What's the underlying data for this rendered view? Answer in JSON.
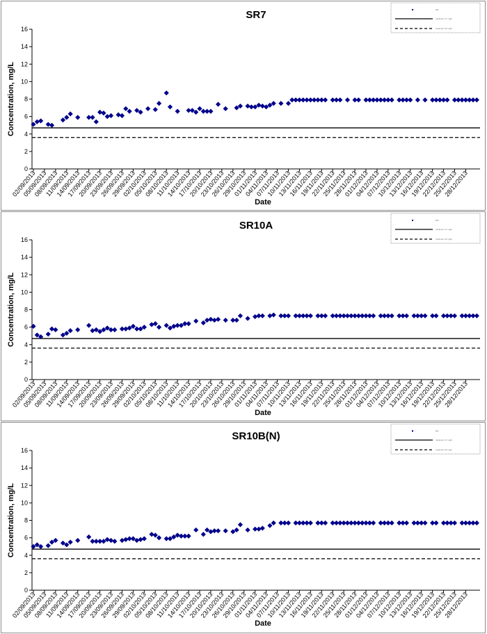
{
  "charts": [
    {
      "type": "scatter",
      "title": "SR7",
      "xlabel": "Date",
      "ylabel": "Concentration, mg/L",
      "ylim": [
        0,
        16
      ],
      "yticks": [
        0,
        2,
        4,
        6,
        8,
        10,
        12,
        14,
        16
      ],
      "x_tick_labels": [
        "02/09/2013",
        "05/09/2013",
        "08/09/2013",
        "11/09/2013",
        "14/09/2013",
        "17/09/2013",
        "20/09/2013",
        "23/09/2013",
        "26/09/2013",
        "29/09/2013",
        "02/10/2013",
        "05/10/2013",
        "08/10/2013",
        "11/10/2013",
        "14/10/2013",
        "17/10/2013",
        "20/10/2013",
        "23/10/2013",
        "26/10/2013",
        "29/10/2013",
        "01/11/2013",
        "04/11/2013",
        "07/11/2013",
        "10/11/2013",
        "13/11/2013",
        "16/11/2013",
        "19/11/2013",
        "22/11/2013",
        "25/11/2013",
        "28/11/2013",
        "01/12/2013",
        "04/12/2013",
        "07/12/2013",
        "10/12/2013",
        "13/12/2013",
        "16/12/2013",
        "19/12/2013",
        "22/12/2013",
        "25/12/2013",
        "28/12/2013"
      ],
      "legend": {
        "position": "top-right",
        "entries": [
          "DO",
          "minimum 4.7 mg/l",
          "minimum 3.6 mg/l"
        ]
      },
      "series": [
        {
          "name": "DO",
          "marker": "diamond",
          "color": "#00008b",
          "x": [
            "02/09/2013",
            "03/09/2013",
            "04/09/2013",
            "06/09/2013",
            "07/09/2013",
            "10/09/2013",
            "11/09/2013",
            "12/09/2013",
            "14/09/2013",
            "17/09/2013",
            "18/09/2013",
            "19/09/2013",
            "20/09/2013",
            "21/09/2013",
            "22/09/2013",
            "23/09/2013",
            "25/09/2013",
            "26/09/2013",
            "27/09/2013",
            "28/09/2013",
            "30/09/2013",
            "01/10/2013",
            "03/10/2013",
            "05/10/2013",
            "06/10/2013",
            "08/10/2013",
            "09/10/2013",
            "11/10/2013",
            "14/10/2013",
            "15/10/2013",
            "16/10/2013",
            "17/10/2013",
            "18/10/2013",
            "19/10/2013",
            "20/10/2013",
            "22/10/2013",
            "24/10/2013",
            "27/10/2013",
            "28/10/2013",
            "30/10/2013",
            "31/10/2013",
            "01/11/2013",
            "02/11/2013",
            "03/11/2013",
            "04/11/2013",
            "05/11/2013",
            "06/11/2013",
            "08/11/2013",
            "10/11/2013",
            "11/11/2013",
            "12/11/2013",
            "13/11/2013",
            "14/11/2013",
            "15/11/2013",
            "16/11/2013",
            "17/11/2013",
            "18/11/2013",
            "19/11/2013",
            "20/11/2013",
            "22/11/2013",
            "23/11/2013",
            "24/11/2013",
            "26/11/2013",
            "28/11/2013",
            "29/11/2013",
            "01/12/2013",
            "02/12/2013",
            "03/12/2013",
            "04/12/2013",
            "05/12/2013",
            "06/12/2013",
            "07/12/2013",
            "08/12/2013",
            "10/12/2013",
            "11/12/2013",
            "12/12/2013",
            "13/12/2013",
            "15/12/2013",
            "17/12/2013",
            "19/12/2013",
            "20/12/2013",
            "21/12/2013",
            "22/12/2013",
            "23/12/2013",
            "25/12/2013",
            "26/12/2013",
            "27/12/2013",
            "28/12/2013",
            "29/12/2013",
            "30/12/2013",
            "31/12/2013"
          ],
          "y": [
            5.1,
            5.4,
            5.5,
            5.1,
            5.0,
            5.6,
            5.9,
            6.3,
            5.9,
            5.9,
            5.9,
            5.4,
            6.5,
            6.4,
            6.0,
            6.1,
            6.2,
            6.1,
            6.9,
            6.6,
            6.7,
            6.5,
            6.9,
            6.8,
            7.5,
            8.7,
            7.1,
            6.6,
            6.7,
            6.7,
            6.5,
            6.9,
            6.6,
            6.6,
            6.6,
            7.4,
            6.9,
            7.0,
            7.2,
            7.2,
            7.1,
            7.1,
            7.3,
            7.2,
            7.1,
            7.3,
            7.5,
            7.5,
            7.5,
            7.9,
            7.9,
            7.9,
            7.9,
            7.9,
            7.9,
            7.9,
            7.9,
            7.9,
            7.9,
            7.9,
            7.9,
            7.9,
            7.9,
            7.9,
            7.9,
            7.9,
            7.9,
            7.9,
            7.9,
            7.9,
            7.9,
            7.9,
            7.9,
            7.9,
            7.9,
            7.9,
            7.9,
            7.9,
            7.9,
            7.9,
            7.9,
            7.9,
            7.9,
            7.9,
            7.9,
            7.9,
            7.9,
            7.9,
            7.9,
            7.9,
            7.9
          ]
        },
        {
          "name": "minimum 4.7 mg/l",
          "type": "line",
          "style": "solid",
          "color": "#000000",
          "y": 4.7
        },
        {
          "name": "minimum 3.6 mg/l",
          "type": "line",
          "style": "dashed",
          "color": "#000000",
          "y": 3.6
        }
      ]
    },
    {
      "type": "scatter",
      "title": "SR10A",
      "xlabel": "Date",
      "ylabel": "Concentration, mg/L",
      "ylim": [
        0,
        16
      ],
      "yticks": [
        0,
        2,
        4,
        6,
        8,
        10,
        12,
        14,
        16
      ],
      "x_tick_labels": [
        "02/09/2013",
        "05/09/2013",
        "08/09/2013",
        "11/09/2013",
        "14/09/2013",
        "17/09/2013",
        "20/09/2013",
        "23/09/2013",
        "26/09/2013",
        "29/09/2013",
        "02/10/2013",
        "05/10/2013",
        "08/10/2013",
        "11/10/2013",
        "14/10/2013",
        "17/10/2013",
        "20/10/2013",
        "23/10/2013",
        "26/10/2013",
        "29/10/2013",
        "01/11/2013",
        "04/11/2013",
        "07/11/2013",
        "10/11/2013",
        "13/11/2013",
        "16/11/2013",
        "19/11/2013",
        "22/11/2013",
        "25/11/2013",
        "28/11/2013",
        "01/12/2013",
        "04/12/2013",
        "07/12/2013",
        "10/12/2013",
        "13/12/2013",
        "16/12/2013",
        "19/12/2013",
        "22/12/2013",
        "25/12/2013",
        "28/12/2013"
      ],
      "legend": {
        "position": "top-right",
        "entries": [
          "DO",
          "minimum 4.7 mg/l",
          "minimum 3.6 mg/l"
        ]
      },
      "series": [
        {
          "name": "DO",
          "marker": "diamond",
          "color": "#00008b",
          "x": [
            "02/09/2013",
            "03/09/2013",
            "04/09/2013",
            "06/09/2013",
            "07/09/2013",
            "08/09/2013",
            "10/09/2013",
            "11/09/2013",
            "12/09/2013",
            "14/09/2013",
            "17/09/2013",
            "18/09/2013",
            "19/09/2013",
            "20/09/2013",
            "21/09/2013",
            "22/09/2013",
            "23/09/2013",
            "24/09/2013",
            "26/09/2013",
            "27/09/2013",
            "28/09/2013",
            "29/09/2013",
            "30/09/2013",
            "01/10/2013",
            "02/10/2013",
            "04/10/2013",
            "05/10/2013",
            "06/10/2013",
            "08/10/2013",
            "09/10/2013",
            "10/10/2013",
            "11/10/2013",
            "12/10/2013",
            "13/10/2013",
            "14/10/2013",
            "16/10/2013",
            "18/10/2013",
            "19/10/2013",
            "20/10/2013",
            "21/10/2013",
            "22/10/2013",
            "24/10/2013",
            "26/10/2013",
            "27/10/2013",
            "28/10/2013",
            "30/10/2013",
            "01/11/2013",
            "02/11/2013",
            "03/11/2013",
            "05/11/2013",
            "06/11/2013",
            "08/11/2013",
            "09/11/2013",
            "10/11/2013",
            "12/11/2013",
            "13/11/2013",
            "14/11/2013",
            "15/11/2013",
            "16/11/2013",
            "18/11/2013",
            "19/11/2013",
            "20/11/2013",
            "22/11/2013",
            "23/11/2013",
            "24/11/2013",
            "25/11/2013",
            "26/11/2013",
            "27/11/2013",
            "28/11/2013",
            "29/11/2013",
            "30/11/2013",
            "01/12/2013",
            "02/12/2013",
            "03/12/2013",
            "05/12/2013",
            "06/12/2013",
            "07/12/2013",
            "08/12/2013",
            "10/12/2013",
            "11/12/2013",
            "12/12/2013",
            "14/12/2013",
            "15/12/2013",
            "16/12/2013",
            "17/12/2013",
            "19/12/2013",
            "20/12/2013",
            "22/12/2013",
            "23/12/2013",
            "24/12/2013",
            "25/12/2013",
            "27/12/2013",
            "28/12/2013",
            "29/12/2013",
            "30/12/2013",
            "31/12/2013"
          ],
          "y": [
            6.1,
            5.1,
            4.9,
            5.2,
            5.8,
            5.7,
            5.1,
            5.3,
            5.6,
            5.7,
            6.2,
            5.6,
            5.7,
            5.5,
            5.7,
            5.9,
            5.7,
            5.7,
            5.8,
            5.8,
            5.9,
            6.1,
            5.8,
            5.8,
            6.0,
            6.3,
            6.4,
            6.0,
            6.2,
            5.9,
            6.1,
            6.2,
            6.2,
            6.4,
            6.4,
            6.7,
            6.5,
            6.8,
            6.9,
            6.8,
            6.9,
            6.8,
            6.8,
            6.8,
            7.3,
            7.0,
            7.2,
            7.3,
            7.3,
            7.3,
            7.4,
            7.3,
            7.3,
            7.3,
            7.3,
            7.3,
            7.3,
            7.3,
            7.3,
            7.3,
            7.3,
            7.3,
            7.3,
            7.3,
            7.3,
            7.3,
            7.3,
            7.3,
            7.3,
            7.3,
            7.3,
            7.3,
            7.3,
            7.3,
            7.3,
            7.3,
            7.3,
            7.3,
            7.3,
            7.3,
            7.3,
            7.3,
            7.3,
            7.3,
            7.3,
            7.3,
            7.3,
            7.3,
            7.3,
            7.3,
            7.3,
            7.3,
            7.3,
            7.3,
            7.3,
            7.3
          ]
        },
        {
          "name": "minimum 4.7 mg/l",
          "type": "line",
          "style": "solid",
          "color": "#000000",
          "y": 4.7
        },
        {
          "name": "minimum 3.6 mg/l",
          "type": "line",
          "style": "dashed",
          "color": "#000000",
          "y": 3.6
        }
      ]
    },
    {
      "type": "scatter",
      "title": "SR10B(N)",
      "xlabel": "Date",
      "ylabel": "Concentration, mg/L",
      "ylim": [
        0,
        16
      ],
      "yticks": [
        0,
        2,
        4,
        6,
        8,
        10,
        12,
        14,
        16
      ],
      "x_tick_labels": [
        "02/09/2013",
        "05/09/2013",
        "08/09/2013",
        "11/09/2013",
        "14/09/2013",
        "17/09/2013",
        "20/09/2013",
        "23/09/2013",
        "26/09/2013",
        "29/09/2013",
        "02/10/2013",
        "05/10/2013",
        "08/10/2013",
        "11/10/2013",
        "14/10/2013",
        "17/10/2013",
        "20/10/2013",
        "23/10/2013",
        "26/10/2013",
        "29/10/2013",
        "01/11/2013",
        "04/11/2013",
        "07/11/2013",
        "10/11/2013",
        "13/11/2013",
        "16/11/2013",
        "19/11/2013",
        "22/11/2013",
        "25/11/2013",
        "28/11/2013",
        "01/12/2013",
        "04/12/2013",
        "07/12/2013",
        "10/12/2013",
        "13/12/2013",
        "16/12/2013",
        "19/12/2013",
        "22/12/2013",
        "25/12/2013",
        "28/12/2013"
      ],
      "legend": {
        "position": "top-right",
        "entries": [
          "DO",
          "minimum 4.7 mg/l",
          "minimum 3.6 mg/l"
        ]
      },
      "series": [
        {
          "name": "DO",
          "marker": "diamond",
          "color": "#00008b",
          "x": [
            "02/09/2013",
            "03/09/2013",
            "04/09/2013",
            "06/09/2013",
            "07/09/2013",
            "08/09/2013",
            "10/09/2013",
            "11/09/2013",
            "12/09/2013",
            "14/09/2013",
            "17/09/2013",
            "18/09/2013",
            "19/09/2013",
            "20/09/2013",
            "21/09/2013",
            "22/09/2013",
            "23/09/2013",
            "24/09/2013",
            "26/09/2013",
            "27/09/2013",
            "28/09/2013",
            "29/09/2013",
            "30/09/2013",
            "01/10/2013",
            "02/10/2013",
            "04/10/2013",
            "05/10/2013",
            "06/10/2013",
            "08/10/2013",
            "09/10/2013",
            "10/10/2013",
            "11/10/2013",
            "12/10/2013",
            "13/10/2013",
            "14/10/2013",
            "16/10/2013",
            "18/10/2013",
            "19/10/2013",
            "20/10/2013",
            "21/10/2013",
            "22/10/2013",
            "24/10/2013",
            "26/10/2013",
            "27/10/2013",
            "28/10/2013",
            "30/10/2013",
            "01/11/2013",
            "02/11/2013",
            "03/11/2013",
            "05/11/2013",
            "06/11/2013",
            "08/11/2013",
            "09/11/2013",
            "10/11/2013",
            "12/11/2013",
            "13/11/2013",
            "14/11/2013",
            "15/11/2013",
            "16/11/2013",
            "18/11/2013",
            "19/11/2013",
            "20/11/2013",
            "22/11/2013",
            "23/11/2013",
            "24/11/2013",
            "25/11/2013",
            "26/11/2013",
            "27/11/2013",
            "28/11/2013",
            "29/11/2013",
            "30/11/2013",
            "01/12/2013",
            "02/12/2013",
            "03/12/2013",
            "05/12/2013",
            "06/12/2013",
            "07/12/2013",
            "08/12/2013",
            "10/12/2013",
            "11/12/2013",
            "12/12/2013",
            "14/12/2013",
            "15/12/2013",
            "16/12/2013",
            "17/12/2013",
            "19/12/2013",
            "20/12/2013",
            "22/12/2013",
            "23/12/2013",
            "24/12/2013",
            "25/12/2013",
            "27/12/2013",
            "28/12/2013",
            "29/12/2013",
            "30/12/2013",
            "31/12/2013"
          ],
          "y": [
            5.0,
            5.2,
            5.0,
            5.1,
            5.5,
            5.7,
            5.4,
            5.2,
            5.5,
            5.7,
            6.1,
            5.6,
            5.6,
            5.6,
            5.6,
            5.8,
            5.7,
            5.6,
            5.7,
            5.8,
            5.9,
            5.9,
            5.7,
            5.8,
            5.9,
            6.4,
            6.3,
            6.0,
            5.9,
            5.9,
            6.1,
            6.3,
            6.2,
            6.2,
            6.2,
            6.9,
            6.4,
            6.9,
            6.7,
            6.8,
            6.8,
            6.8,
            6.7,
            6.9,
            7.5,
            6.9,
            7.0,
            7.0,
            7.1,
            7.4,
            7.7,
            7.7,
            7.7,
            7.7,
            7.7,
            7.7,
            7.7,
            7.7,
            7.7,
            7.7,
            7.7,
            7.7,
            7.7,
            7.7,
            7.7,
            7.7,
            7.7,
            7.7,
            7.7,
            7.7,
            7.7,
            7.7,
            7.7,
            7.7,
            7.7,
            7.7,
            7.7,
            7.7,
            7.7,
            7.7,
            7.7,
            7.7,
            7.7,
            7.7,
            7.7,
            7.7,
            7.7,
            7.7,
            7.7,
            7.7,
            7.7,
            7.7,
            7.7,
            7.7,
            7.7,
            7.7
          ]
        },
        {
          "name": "minimum 4.7 mg/l",
          "type": "line",
          "style": "solid",
          "color": "#000000",
          "y": 4.7
        },
        {
          "name": "minimum 3.6 mg/l",
          "type": "line",
          "style": "dashed",
          "color": "#000000",
          "y": 3.6
        }
      ]
    }
  ]
}
